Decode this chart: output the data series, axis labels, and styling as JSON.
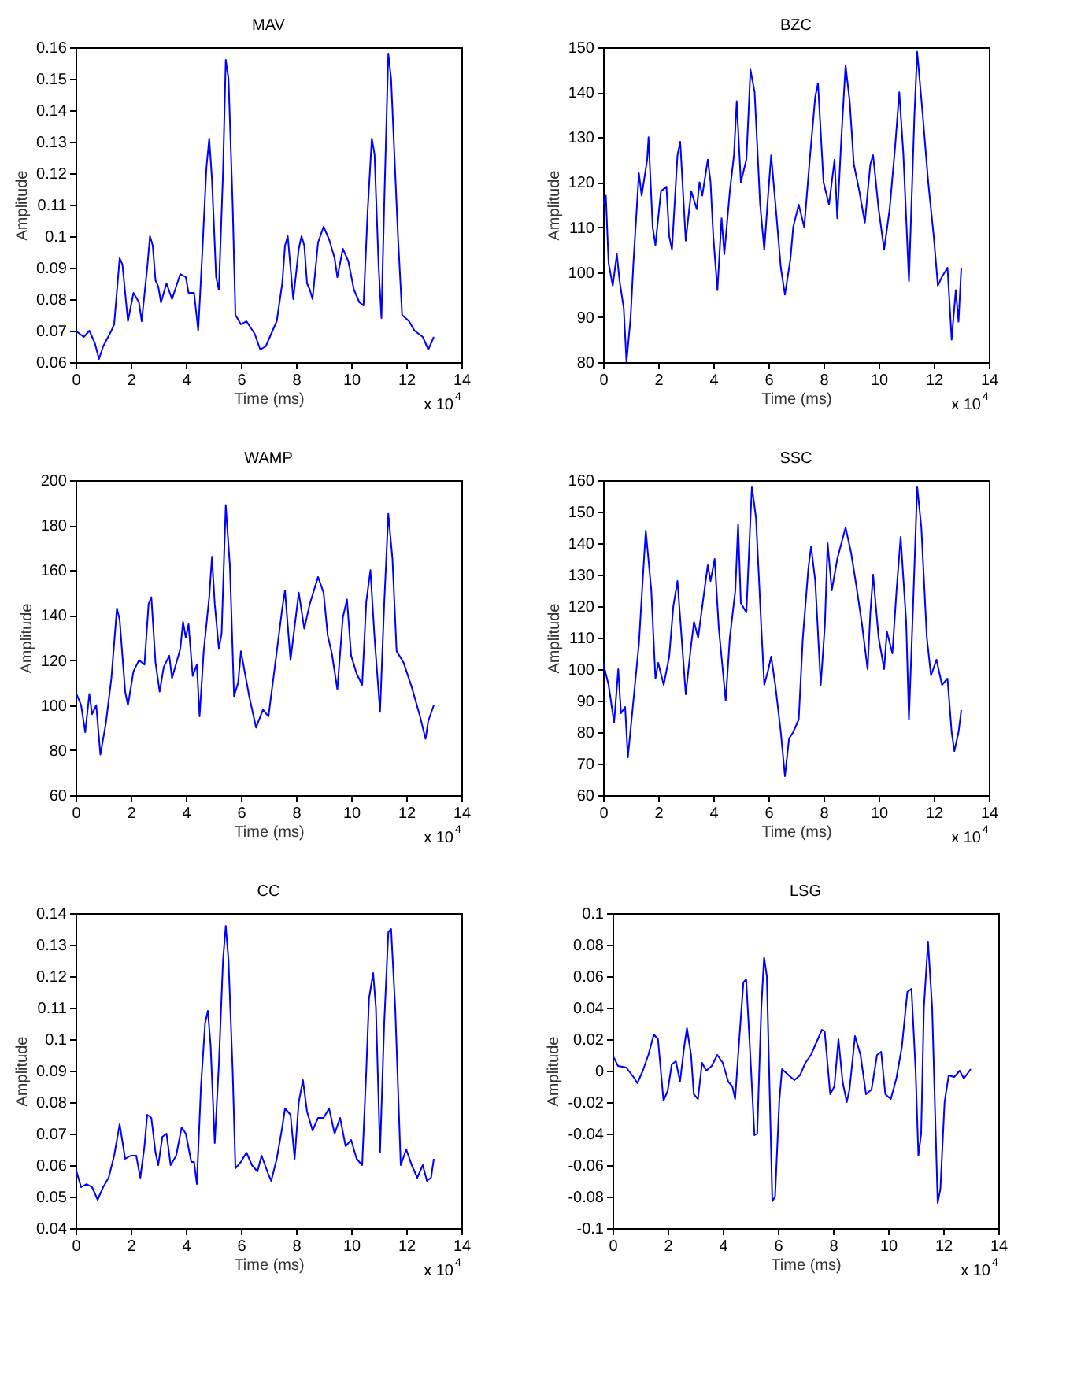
{
  "chart_data": [
    {
      "type": "line",
      "title": "MAV",
      "xlabel": "Time (ms)",
      "ylabel": "Amplitude",
      "annotations": [
        "x 10$^{4}$"
      ],
      "xlim": [
        0,
        14
      ],
      "xticks": [
        0,
        2,
        4,
        6,
        8,
        10,
        12,
        14
      ],
      "ylim": [
        0.06,
        0.16
      ],
      "yticks": [
        0.06,
        0.07,
        0.08,
        0.09,
        0.1,
        0.11,
        0.12,
        0.13,
        0.14,
        0.15,
        0.16
      ],
      "x": [
        0,
        0.3,
        0.5,
        0.7,
        0.85,
        1.0,
        1.3,
        1.4,
        1.6,
        1.7,
        1.9,
        2.1,
        2.3,
        2.4,
        2.6,
        2.7,
        2.8,
        2.9,
        3.0,
        3.1,
        3.3,
        3.5,
        3.8,
        4.0,
        4.1,
        4.3,
        4.45,
        4.6,
        4.75,
        4.85,
        4.95,
        5.1,
        5.2,
        5.35,
        5.45,
        5.55,
        5.7,
        5.8,
        6.0,
        6.2,
        6.5,
        6.7,
        6.9,
        7.1,
        7.3,
        7.5,
        7.6,
        7.7,
        7.9,
        8.1,
        8.2,
        8.3,
        8.4,
        8.5,
        8.6,
        8.8,
        9.0,
        9.2,
        9.4,
        9.5,
        9.7,
        9.9,
        10.1,
        10.3,
        10.45,
        10.6,
        10.75,
        10.85,
        11.0,
        11.1,
        11.2,
        11.35,
        11.45,
        11.7,
        11.85,
        12.1,
        12.3,
        12.6,
        12.8,
        13.0
      ],
      "series": [
        {
          "color": "#0000ff",
          "values": [
            0.07,
            0.068,
            0.07,
            0.066,
            0.061,
            0.065,
            0.07,
            0.072,
            0.093,
            0.091,
            0.073,
            0.082,
            0.079,
            0.073,
            0.09,
            0.1,
            0.097,
            0.086,
            0.084,
            0.079,
            0.085,
            0.08,
            0.088,
            0.087,
            0.082,
            0.082,
            0.07,
            0.095,
            0.122,
            0.131,
            0.118,
            0.087,
            0.083,
            0.12,
            0.156,
            0.15,
            0.11,
            0.075,
            0.072,
            0.073,
            0.069,
            0.064,
            0.065,
            0.069,
            0.073,
            0.085,
            0.097,
            0.1,
            0.08,
            0.096,
            0.1,
            0.097,
            0.085,
            0.083,
            0.08,
            0.098,
            0.103,
            0.099,
            0.093,
            0.087,
            0.096,
            0.092,
            0.083,
            0.079,
            0.078,
            0.108,
            0.131,
            0.126,
            0.09,
            0.074,
            0.11,
            0.158,
            0.15,
            0.1,
            0.075,
            0.073,
            0.07,
            0.068,
            0.064,
            0.068
          ]
        }
      ]
    },
    {
      "type": "line",
      "title": "BZC",
      "xlabel": "Time (ms)",
      "ylabel": "Amplitude",
      "annotations": [
        "x 10$^{4}$"
      ],
      "xlim": [
        0,
        14
      ],
      "xticks": [
        0,
        2,
        4,
        6,
        8,
        10,
        12,
        14
      ],
      "ylim": [
        80,
        150
      ],
      "yticks": [
        80,
        90,
        100,
        110,
        120,
        130,
        140,
        150
      ],
      "x": [
        0,
        0.1,
        0.2,
        0.35,
        0.5,
        0.6,
        0.75,
        0.85,
        1.0,
        1.1,
        1.3,
        1.4,
        1.6,
        1.65,
        1.8,
        1.9,
        2.1,
        2.3,
        2.4,
        2.5,
        2.7,
        2.8,
        2.9,
        3.0,
        3.2,
        3.4,
        3.5,
        3.6,
        3.8,
        3.9,
        4.0,
        4.15,
        4.3,
        4.4,
        4.6,
        4.75,
        4.85,
        5.0,
        5.2,
        5.35,
        5.5,
        5.7,
        5.85,
        6.0,
        6.1,
        6.3,
        6.45,
        6.6,
        6.8,
        6.9,
        7.1,
        7.3,
        7.5,
        7.7,
        7.8,
        8.0,
        8.2,
        8.4,
        8.5,
        8.65,
        8.8,
        8.95,
        9.1,
        9.3,
        9.5,
        9.7,
        9.8,
        10.0,
        10.2,
        10.4,
        10.6,
        10.75,
        10.9,
        11.1,
        11.3,
        11.4,
        11.6,
        11.8,
        12.0,
        12.15,
        12.3,
        12.5,
        12.65,
        12.8,
        12.9,
        13.0
      ],
      "series": [
        {
          "color": "#0000ff",
          "values": [
            115,
            117,
            102,
            97,
            104,
            98,
            92,
            80,
            90,
            102,
            122,
            117,
            125,
            130,
            110,
            106,
            118,
            119,
            108,
            105,
            126,
            129,
            118,
            107,
            118,
            114,
            120,
            117,
            125,
            120,
            108,
            96,
            112,
            104,
            118,
            126,
            138,
            120,
            125,
            145,
            140,
            115,
            105,
            118,
            126,
            112,
            101,
            95,
            103,
            110,
            115,
            110,
            125,
            139,
            142,
            120,
            115,
            125,
            112,
            130,
            146,
            138,
            124,
            118,
            111,
            124,
            126,
            114,
            105,
            114,
            128,
            140,
            126,
            98,
            135,
            149,
            135,
            120,
            108,
            97,
            99,
            101,
            85,
            96,
            89,
            101
          ]
        }
      ]
    },
    {
      "type": "line",
      "title": "WAMP",
      "xlabel": "Time (ms)",
      "ylabel": "Amplitude",
      "annotations": [
        "x 10$^{4}$"
      ],
      "xlim": [
        0,
        14
      ],
      "xticks": [
        0,
        2,
        4,
        6,
        8,
        10,
        12,
        14
      ],
      "ylim": [
        60,
        200
      ],
      "yticks": [
        60,
        80,
        100,
        120,
        140,
        160,
        180,
        200
      ],
      "x": [
        0,
        0.2,
        0.35,
        0.5,
        0.6,
        0.75,
        0.9,
        1.1,
        1.3,
        1.5,
        1.6,
        1.8,
        1.9,
        2.1,
        2.3,
        2.5,
        2.65,
        2.75,
        2.9,
        3.05,
        3.2,
        3.4,
        3.5,
        3.8,
        3.9,
        4.0,
        4.1,
        4.25,
        4.4,
        4.5,
        4.65,
        4.85,
        4.95,
        5.05,
        5.2,
        5.3,
        5.45,
        5.6,
        5.75,
        5.9,
        6.0,
        6.3,
        6.55,
        6.8,
        7.0,
        7.2,
        7.5,
        7.6,
        7.8,
        7.95,
        8.1,
        8.3,
        8.5,
        8.8,
        9.0,
        9.15,
        9.3,
        9.5,
        9.7,
        9.85,
        10.0,
        10.2,
        10.4,
        10.55,
        10.7,
        10.85,
        11.05,
        11.2,
        11.35,
        11.5,
        11.65,
        11.9,
        12.2,
        12.5,
        12.7,
        12.8,
        13.0
      ],
      "series": [
        {
          "color": "#0000ff",
          "values": [
            106,
            100,
            88,
            105,
            96,
            100,
            78,
            92,
            112,
            143,
            138,
            106,
            100,
            115,
            120,
            118,
            145,
            148,
            119,
            106,
            117,
            122,
            112,
            125,
            137,
            130,
            136,
            113,
            118,
            95,
            124,
            148,
            166,
            145,
            125,
            132,
            189,
            162,
            104,
            110,
            124,
            104,
            90,
            98,
            95,
            114,
            143,
            151,
            120,
            135,
            150,
            134,
            145,
            157,
            150,
            131,
            123,
            107,
            139,
            147,
            122,
            114,
            109,
            146,
            160,
            130,
            97,
            145,
            185,
            165,
            124,
            119,
            108,
            95,
            85,
            93,
            100
          ]
        }
      ]
    },
    {
      "type": "line",
      "title": "SSC",
      "xlabel": "Time (ms)",
      "ylabel": "Amplitude",
      "annotations": [
        "x 10$^{4}$"
      ],
      "xlim": [
        0,
        14
      ],
      "xticks": [
        0,
        2,
        4,
        6,
        8,
        10,
        12,
        14
      ],
      "ylim": [
        60,
        160
      ],
      "yticks": [
        60,
        70,
        80,
        90,
        100,
        110,
        120,
        130,
        140,
        150,
        160
      ],
      "x": [
        0,
        0.2,
        0.4,
        0.55,
        0.65,
        0.8,
        0.9,
        1.1,
        1.3,
        1.45,
        1.55,
        1.75,
        1.9,
        2.0,
        2.2,
        2.4,
        2.55,
        2.7,
        2.85,
        3.0,
        3.2,
        3.3,
        3.45,
        3.6,
        3.8,
        3.9,
        4.05,
        4.2,
        4.45,
        4.6,
        4.8,
        4.9,
        5.0,
        5.2,
        5.4,
        5.55,
        5.75,
        5.85,
        6.0,
        6.1,
        6.25,
        6.45,
        6.6,
        6.75,
        6.9,
        7.1,
        7.25,
        7.45,
        7.55,
        7.7,
        7.9,
        8.05,
        8.15,
        8.3,
        8.5,
        8.8,
        9.0,
        9.2,
        9.4,
        9.6,
        9.7,
        9.8,
        10.0,
        10.2,
        10.3,
        10.5,
        10.65,
        10.8,
        11.0,
        11.1,
        11.25,
        11.4,
        11.55,
        11.75,
        11.9,
        12.1,
        12.3,
        12.5,
        12.65,
        12.75,
        12.9,
        13.0
      ],
      "series": [
        {
          "color": "#0000ff",
          "values": [
            102,
            95,
            83,
            100,
            86,
            88,
            72,
            90,
            108,
            130,
            144,
            125,
            97,
            102,
            95,
            104,
            120,
            128,
            110,
            92,
            108,
            115,
            110,
            120,
            133,
            128,
            135,
            113,
            90,
            110,
            125,
            146,
            121,
            118,
            158,
            148,
            112,
            95,
            100,
            104,
            95,
            80,
            66,
            78,
            80,
            84,
            110,
            132,
            139,
            128,
            95,
            114,
            140,
            125,
            135,
            145,
            137,
            126,
            114,
            100,
            118,
            130,
            110,
            100,
            112,
            105,
            125,
            142,
            115,
            84,
            120,
            158,
            145,
            110,
            98,
            103,
            95,
            97,
            80,
            74,
            80,
            87
          ]
        }
      ]
    },
    {
      "type": "line",
      "title": "CC",
      "xlabel": "Time (ms)",
      "ylabel": "Amplitude",
      "annotations": [
        "x 10$^{4}$"
      ],
      "xlim": [
        0,
        14
      ],
      "xticks": [
        0,
        2,
        4,
        6,
        8,
        10,
        12,
        14
      ],
      "ylim": [
        0.04,
        0.14
      ],
      "yticks": [
        0.04,
        0.05,
        0.06,
        0.07,
        0.08,
        0.09,
        0.1,
        0.11,
        0.12,
        0.13,
        0.14
      ],
      "x": [
        0,
        0.2,
        0.4,
        0.6,
        0.8,
        1.0,
        1.2,
        1.4,
        1.6,
        1.8,
        2.0,
        2.2,
        2.35,
        2.5,
        2.6,
        2.75,
        2.9,
        3.0,
        3.15,
        3.3,
        3.45,
        3.65,
        3.85,
        4.0,
        4.2,
        4.3,
        4.4,
        4.55,
        4.7,
        4.8,
        4.9,
        5.05,
        5.2,
        5.35,
        5.45,
        5.55,
        5.7,
        5.8,
        6.0,
        6.2,
        6.4,
        6.6,
        6.75,
        7.0,
        7.1,
        7.3,
        7.5,
        7.6,
        7.8,
        7.95,
        8.1,
        8.25,
        8.4,
        8.6,
        8.8,
        9.0,
        9.2,
        9.4,
        9.6,
        9.8,
        10.0,
        10.2,
        10.4,
        10.55,
        10.65,
        10.8,
        10.9,
        11.05,
        11.2,
        11.35,
        11.45,
        11.6,
        11.8,
        12.0,
        12.2,
        12.4,
        12.6,
        12.75,
        12.9,
        13.0
      ],
      "series": [
        {
          "color": "#0000ff",
          "values": [
            0.059,
            0.053,
            0.054,
            0.053,
            0.049,
            0.053,
            0.056,
            0.063,
            0.073,
            0.062,
            0.063,
            0.063,
            0.056,
            0.066,
            0.076,
            0.075,
            0.064,
            0.06,
            0.069,
            0.07,
            0.06,
            0.063,
            0.072,
            0.07,
            0.061,
            0.061,
            0.054,
            0.085,
            0.105,
            0.109,
            0.098,
            0.067,
            0.092,
            0.125,
            0.136,
            0.125,
            0.09,
            0.059,
            0.061,
            0.064,
            0.06,
            0.058,
            0.063,
            0.057,
            0.055,
            0.062,
            0.072,
            0.078,
            0.076,
            0.062,
            0.08,
            0.087,
            0.077,
            0.071,
            0.075,
            0.075,
            0.078,
            0.07,
            0.075,
            0.066,
            0.068,
            0.062,
            0.06,
            0.09,
            0.113,
            0.121,
            0.11,
            0.064,
            0.105,
            0.134,
            0.135,
            0.11,
            0.06,
            0.065,
            0.06,
            0.056,
            0.06,
            0.055,
            0.056,
            0.062
          ]
        }
      ]
    },
    {
      "type": "line",
      "title": "LSG",
      "xlabel": "Time (ms)",
      "ylabel": "Amplitude",
      "annotations": [
        "x 10$^{4}$"
      ],
      "xlim": [
        0,
        14
      ],
      "xticks": [
        0,
        2,
        4,
        6,
        8,
        10,
        12,
        14
      ],
      "ylim": [
        -0.1,
        0.1
      ],
      "yticks": [
        -0.1,
        -0.08,
        -0.06,
        -0.04,
        -0.02,
        0,
        0.02,
        0.04,
        0.06,
        0.08,
        0.1
      ],
      "x": [
        0,
        0.2,
        0.5,
        0.8,
        0.9,
        1.1,
        1.3,
        1.5,
        1.65,
        1.85,
        2.0,
        2.15,
        2.3,
        2.45,
        2.6,
        2.7,
        2.85,
        2.95,
        3.1,
        3.25,
        3.4,
        3.6,
        3.8,
        4.0,
        4.2,
        4.35,
        4.45,
        4.6,
        4.75,
        4.85,
        5.0,
        5.15,
        5.25,
        5.4,
        5.5,
        5.6,
        5.8,
        5.9,
        6.05,
        6.15,
        6.4,
        6.6,
        6.8,
        7.0,
        7.2,
        7.4,
        7.6,
        7.7,
        7.9,
        8.05,
        8.2,
        8.35,
        8.5,
        8.6,
        8.8,
        9.0,
        9.2,
        9.4,
        9.6,
        9.75,
        9.9,
        10.1,
        10.3,
        10.5,
        10.7,
        10.85,
        11.0,
        11.1,
        11.2,
        11.3,
        11.45,
        11.6,
        11.8,
        11.9,
        12.05,
        12.2,
        12.4,
        12.6,
        12.75,
        13.0
      ],
      "series": [
        {
          "color": "#0000ff",
          "values": [
            0.01,
            0.003,
            0.002,
            -0.005,
            -0.008,
            0.0,
            0.01,
            0.023,
            0.02,
            -0.019,
            -0.013,
            0.004,
            0.006,
            -0.007,
            0.015,
            0.027,
            0.01,
            -0.015,
            -0.018,
            0.005,
            0.0,
            0.003,
            0.01,
            0.005,
            -0.007,
            -0.01,
            -0.018,
            0.02,
            0.056,
            0.058,
            0.01,
            -0.041,
            -0.04,
            0.04,
            0.072,
            0.06,
            -0.083,
            -0.08,
            -0.02,
            0.001,
            -0.003,
            -0.006,
            -0.003,
            0.005,
            0.01,
            0.018,
            0.026,
            0.025,
            -0.015,
            -0.01,
            0.02,
            -0.007,
            -0.02,
            -0.012,
            0.022,
            0.01,
            -0.015,
            -0.012,
            0.01,
            0.012,
            -0.015,
            -0.018,
            -0.005,
            0.015,
            0.05,
            0.052,
            0.0,
            -0.054,
            -0.04,
            0.04,
            0.082,
            0.04,
            -0.084,
            -0.075,
            -0.02,
            -0.003,
            -0.004,
            0.0,
            -0.005,
            0.001
          ]
        }
      ]
    }
  ]
}
